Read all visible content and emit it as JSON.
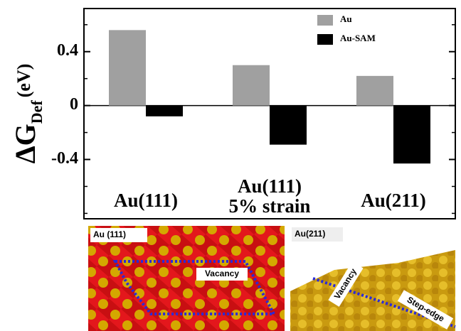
{
  "chart_data": {
    "type": "bar",
    "y_label": "ΔG",
    "y_label_sub": "Def",
    "y_label_unit": "(eV)",
    "categories": [
      "Au(111)",
      "Au(111)\n5% strain",
      "Au(211)"
    ],
    "series": [
      {
        "name": "Au",
        "color": "#a0a0a0",
        "values": [
          0.56,
          0.3,
          0.22
        ]
      },
      {
        "name": "Au-SAM",
        "color": "#000000",
        "values": [
          -0.08,
          -0.29,
          -0.43
        ]
      }
    ],
    "ylim": [
      -0.84,
      0.72
    ],
    "yticks": [
      -0.4,
      0,
      0.4
    ],
    "yticks_minor": [
      -0.8,
      -0.6,
      -0.2,
      0.2,
      0.6
    ],
    "legend": "upper right"
  },
  "images": [
    {
      "title": "Au (111)",
      "annotation": "Vacancy"
    },
    {
      "title": "Au(211)",
      "annotations": [
        "Vacancy",
        "Step-edge"
      ]
    }
  ]
}
